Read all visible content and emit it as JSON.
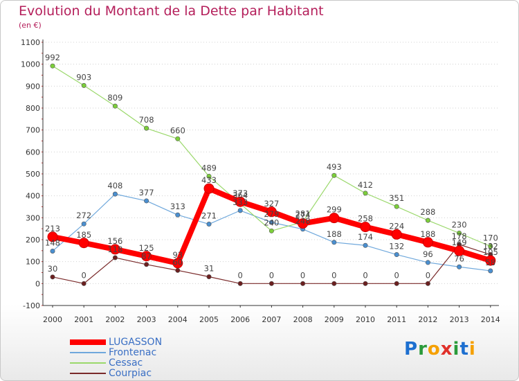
{
  "title": "Evolution du Montant de la Dette par Habitant",
  "subtitle": "(en €)",
  "logo": {
    "letters": [
      {
        "char": "P",
        "color": "#1d6fd0"
      },
      {
        "char": "r",
        "color": "#2a9a3a"
      },
      {
        "char": "o",
        "color": "#f5a000"
      },
      {
        "char": "x",
        "color": "#e0302a"
      },
      {
        "char": "i",
        "color": "#2a9a3a"
      },
      {
        "char": "t",
        "color": "#1d6fd0"
      },
      {
        "char": "i",
        "color": "#f5a000"
      }
    ]
  },
  "chart_data": {
    "type": "line",
    "title": "Evolution du Montant de la Dette par Habitant",
    "subtitle": "(en €)",
    "x": [
      2000,
      2001,
      2002,
      2003,
      2004,
      2005,
      2006,
      2007,
      2008,
      2009,
      2010,
      2011,
      2012,
      2013,
      2014
    ],
    "ylim": [
      -100,
      1100
    ],
    "yticks": [
      -100,
      0,
      100,
      200,
      300,
      400,
      500,
      600,
      700,
      800,
      900,
      1000,
      1100
    ],
    "grid": "dotted horizontal",
    "legend_position": "bottom-left",
    "series": [
      {
        "name": "LUGASSON",
        "color": "#ff0000",
        "line_color": "#ff0000",
        "emphasis": true,
        "values": [
          213,
          185,
          156,
          125,
          93,
          433,
          373,
          327,
          274,
          299,
          258,
          224,
          188,
          149,
          105
        ]
      },
      {
        "name": "Frontenac",
        "color": "#4a8fd0",
        "line_color": "#6fa8dc",
        "values": [
          148,
          272,
          408,
          377,
          313,
          271,
          333,
          279,
          248,
          188,
          174,
          132,
          96,
          76,
          58
        ]
      },
      {
        "name": "Cessac",
        "color": "#7ccf3a",
        "line_color": "#9ad86a",
        "values": [
          992,
          903,
          809,
          708,
          660,
          489,
          364,
          240,
          281,
          493,
          412,
          351,
          288,
          230,
          170
        ]
      },
      {
        "name": "Courpiac",
        "color": "#6b1f1f",
        "line_color": "#7a2a2a",
        "values": [
          30,
          0,
          118,
          87,
          60,
          31,
          0,
          0,
          0,
          0,
          0,
          0,
          0,
          178,
          132
        ]
      }
    ]
  }
}
